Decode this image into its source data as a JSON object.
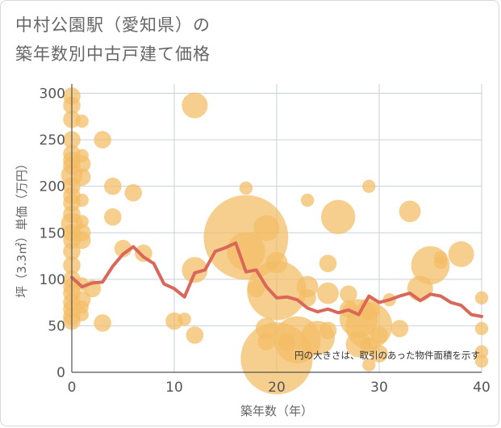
{
  "title": {
    "line1": "中村公園駅（愛知県）の",
    "line2": "築年数別中古戸建て価格"
  },
  "note": "円の大きさは、取引のあった物件面積を示す",
  "colors": {
    "bubble": "#f2bd64",
    "line": "#d9675a",
    "grid": "#c8d0da",
    "axis": "#555555",
    "background": "#ffffff"
  },
  "chart_data": {
    "type": "scatter",
    "xlabel": "築年数（年）",
    "ylabel": "坪（3.3㎡）単価（万円）",
    "xlim": [
      0,
      40
    ],
    "ylim": [
      0,
      310
    ],
    "xticks": [
      0,
      10,
      20,
      30,
      40
    ],
    "yticks": [
      0,
      50,
      100,
      150,
      200,
      250,
      300
    ],
    "grid": true,
    "series": [
      {
        "type": "bubble",
        "points": [
          {
            "x": 0,
            "y": 297,
            "size": 3
          },
          {
            "x": 0,
            "y": 287,
            "size": 3
          },
          {
            "x": 0,
            "y": 272,
            "size": 3
          },
          {
            "x": 0,
            "y": 250,
            "size": 3
          },
          {
            "x": 0,
            "y": 235,
            "size": 3
          },
          {
            "x": 0,
            "y": 228,
            "size": 3
          },
          {
            "x": 0,
            "y": 222,
            "size": 3
          },
          {
            "x": 0,
            "y": 212,
            "size": 4
          },
          {
            "x": 0,
            "y": 200,
            "size": 3
          },
          {
            "x": 0,
            "y": 190,
            "size": 3
          },
          {
            "x": 0,
            "y": 182,
            "size": 3
          },
          {
            "x": 0,
            "y": 170,
            "size": 3
          },
          {
            "x": 0,
            "y": 160,
            "size": 4
          },
          {
            "x": 0,
            "y": 150,
            "size": 3
          },
          {
            "x": 0,
            "y": 142,
            "size": 3
          },
          {
            "x": 0,
            "y": 130,
            "size": 3
          },
          {
            "x": 0,
            "y": 115,
            "size": 3
          },
          {
            "x": 0,
            "y": 100,
            "size": 3
          },
          {
            "x": 0,
            "y": 92,
            "size": 3
          },
          {
            "x": 0,
            "y": 85,
            "size": 3
          },
          {
            "x": 0,
            "y": 75,
            "size": 3
          },
          {
            "x": 0,
            "y": 68,
            "size": 3
          },
          {
            "x": 0,
            "y": 60,
            "size": 3
          },
          {
            "x": 0,
            "y": 55,
            "size": 3
          },
          {
            "x": 1,
            "y": 270,
            "size": 2
          },
          {
            "x": 1,
            "y": 233,
            "size": 2
          },
          {
            "x": 1,
            "y": 224,
            "size": 3
          },
          {
            "x": 1,
            "y": 210,
            "size": 3
          },
          {
            "x": 1,
            "y": 185,
            "size": 2
          },
          {
            "x": 1,
            "y": 162,
            "size": 2
          },
          {
            "x": 1,
            "y": 150,
            "size": 3
          },
          {
            "x": 1,
            "y": 142,
            "size": 3
          },
          {
            "x": 1,
            "y": 95,
            "size": 2
          },
          {
            "x": 1,
            "y": 78,
            "size": 3
          },
          {
            "x": 1,
            "y": 70,
            "size": 2
          },
          {
            "x": 1,
            "y": 62,
            "size": 2
          },
          {
            "x": 2,
            "y": 90,
            "size": 3
          },
          {
            "x": 3,
            "y": 250,
            "size": 3
          },
          {
            "x": 3,
            "y": 53,
            "size": 3
          },
          {
            "x": 4,
            "y": 200,
            "size": 3
          },
          {
            "x": 4,
            "y": 167,
            "size": 3
          },
          {
            "x": 5,
            "y": 133,
            "size": 3
          },
          {
            "x": 6,
            "y": 193,
            "size": 3
          },
          {
            "x": 7,
            "y": 128,
            "size": 3
          },
          {
            "x": 10,
            "y": 55,
            "size": 3
          },
          {
            "x": 11,
            "y": 57,
            "size": 2
          },
          {
            "x": 12,
            "y": 287,
            "size": 5
          },
          {
            "x": 12,
            "y": 110,
            "size": 5
          },
          {
            "x": 12,
            "y": 40,
            "size": 3
          },
          {
            "x": 17,
            "y": 145,
            "size": 19
          },
          {
            "x": 17,
            "y": 130,
            "size": 8
          },
          {
            "x": 17,
            "y": 198,
            "size": 2
          },
          {
            "x": 18,
            "y": 90,
            "size": 3
          },
          {
            "x": 19,
            "y": 155,
            "size": 5
          },
          {
            "x": 19,
            "y": 47,
            "size": 4
          },
          {
            "x": 19,
            "y": 33,
            "size": 3
          },
          {
            "x": 20,
            "y": 118,
            "size": 4
          },
          {
            "x": 20,
            "y": 88,
            "size": 13
          },
          {
            "x": 20,
            "y": 15,
            "size": 16
          },
          {
            "x": 21,
            "y": 32,
            "size": 3
          },
          {
            "x": 22,
            "y": 35,
            "size": 10
          },
          {
            "x": 23,
            "y": 185,
            "size": 2
          },
          {
            "x": 23,
            "y": 92,
            "size": 4
          },
          {
            "x": 23,
            "y": 80,
            "size": 3
          },
          {
            "x": 24,
            "y": 37,
            "size": 7
          },
          {
            "x": 25,
            "y": 117,
            "size": 3
          },
          {
            "x": 25,
            "y": 85,
            "size": 4
          },
          {
            "x": 25,
            "y": 45,
            "size": 3
          },
          {
            "x": 26,
            "y": 167,
            "size": 7
          },
          {
            "x": 27,
            "y": 84,
            "size": 3
          },
          {
            "x": 27,
            "y": 68,
            "size": 3
          },
          {
            "x": 28,
            "y": 58,
            "size": 8
          },
          {
            "x": 28,
            "y": 30,
            "size": 5
          },
          {
            "x": 29,
            "y": 200,
            "size": 2
          },
          {
            "x": 29,
            "y": 68,
            "size": 4
          },
          {
            "x": 29,
            "y": 50,
            "size": 10
          },
          {
            "x": 29,
            "y": 28,
            "size": 3
          },
          {
            "x": 29,
            "y": 8,
            "size": 2
          },
          {
            "x": 30,
            "y": 40,
            "size": 3
          },
          {
            "x": 30,
            "y": 20,
            "size": 3
          },
          {
            "x": 31,
            "y": 78,
            "size": 2
          },
          {
            "x": 32,
            "y": 47,
            "size": 3
          },
          {
            "x": 33,
            "y": 173,
            "size": 4
          },
          {
            "x": 34,
            "y": 90,
            "size": 5
          },
          {
            "x": 35,
            "y": 115,
            "size": 8
          },
          {
            "x": 36,
            "y": 123,
            "size": 2
          },
          {
            "x": 36,
            "y": 118,
            "size": 2
          },
          {
            "x": 38,
            "y": 127,
            "size": 5
          },
          {
            "x": 40,
            "y": 80,
            "size": 2
          },
          {
            "x": 40,
            "y": 47,
            "size": 2
          },
          {
            "x": 40,
            "y": 22,
            "size": 2
          },
          {
            "x": 40,
            "y": 12,
            "size": 2
          }
        ]
      },
      {
        "type": "line",
        "x": [
          0,
          1,
          2,
          3,
          4,
          5,
          6,
          7,
          8,
          9,
          10,
          11,
          12,
          13,
          14,
          15,
          16,
          17,
          18,
          19,
          20,
          21,
          22,
          23,
          24,
          25,
          26,
          27,
          28,
          29,
          30,
          31,
          32,
          33,
          34,
          35,
          36,
          37,
          38,
          39,
          40
        ],
        "y": [
          102,
          92,
          96,
          97,
          114,
          127,
          135,
          124,
          117,
          95,
          90,
          81,
          107,
          110,
          130,
          134,
          139,
          108,
          110,
          92,
          80,
          81,
          78,
          69,
          65,
          68,
          64,
          67,
          62,
          82,
          75,
          78,
          82,
          85,
          77,
          84,
          82,
          75,
          72,
          62,
          60
        ]
      }
    ]
  }
}
